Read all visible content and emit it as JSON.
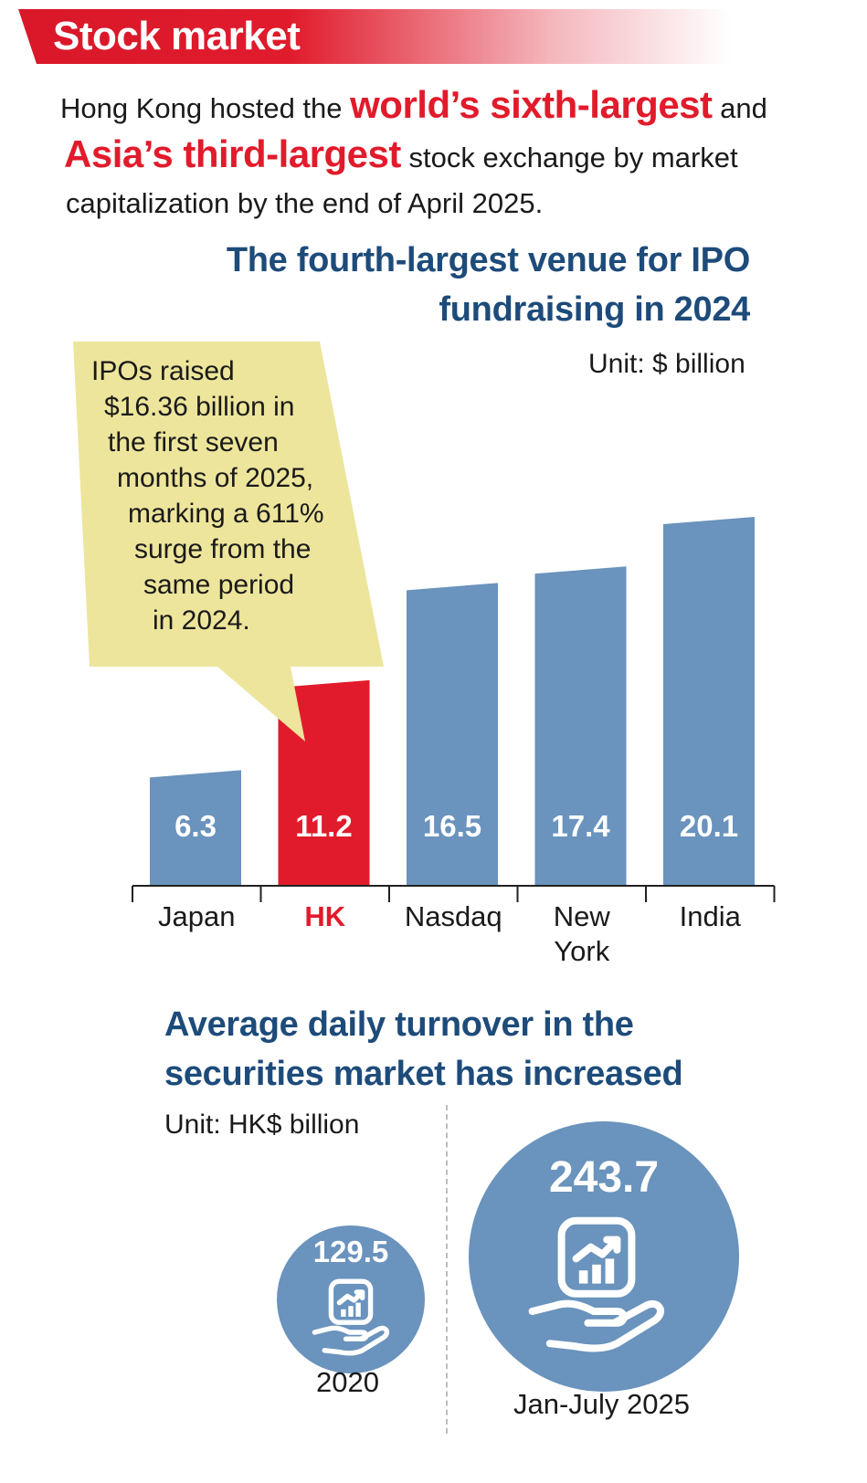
{
  "banner": {
    "title": "Stock market"
  },
  "intro": {
    "text1": "Hong Kong hosted the ",
    "highlight1": "world’s sixth-largest",
    "text2": " and",
    "highlight2": "Asia’s third-largest",
    "text3": " stock exchange by market",
    "text4": "capitalization by the end of April 2025."
  },
  "colors": {
    "red": "#e11b2b",
    "blue": "#6a93bd",
    "navy": "#1d4b7a",
    "callout": "#ede59b"
  },
  "chart_data": {
    "type": "bar",
    "title": "The fourth-largest venue for IPO fundraising in 2024",
    "title_lines": [
      "The fourth-largest venue for IPO",
      "fundraising in 2024"
    ],
    "unit": "Unit: $ billion",
    "categories": [
      "Japan",
      "HK",
      "Nasdaq",
      "New York",
      "India"
    ],
    "category_lines": [
      [
        "Japan"
      ],
      [
        "HK"
      ],
      [
        "Nasdaq"
      ],
      [
        "New",
        "York"
      ],
      [
        "India"
      ]
    ],
    "values": [
      6.3,
      11.2,
      16.5,
      17.4,
      20.1
    ],
    "value_labels": [
      "6.3",
      "11.2",
      "16.5",
      "17.4",
      "20.1"
    ],
    "highlight_category": "HK",
    "bar_colors": [
      "#6a93bd",
      "#e11b2b",
      "#6a93bd",
      "#6a93bd",
      "#6a93bd"
    ],
    "callout": {
      "lines": [
        "IPOs raised",
        "$16.36 billion in",
        "the first seven",
        "months of 2025,",
        "marking a 611%",
        "surge from the",
        "same period",
        "in 2024."
      ]
    }
  },
  "turnover": {
    "title_lines": [
      "Average daily turnover in the",
      "securities market has increased"
    ],
    "unit": "Unit: HK$ billion",
    "items": [
      {
        "period": "2020",
        "value": "129.5",
        "icon": "hand-bar-chart-icon"
      },
      {
        "period": "Jan-July 2025",
        "value": "243.7",
        "icon": "hand-bar-chart-icon"
      }
    ]
  }
}
